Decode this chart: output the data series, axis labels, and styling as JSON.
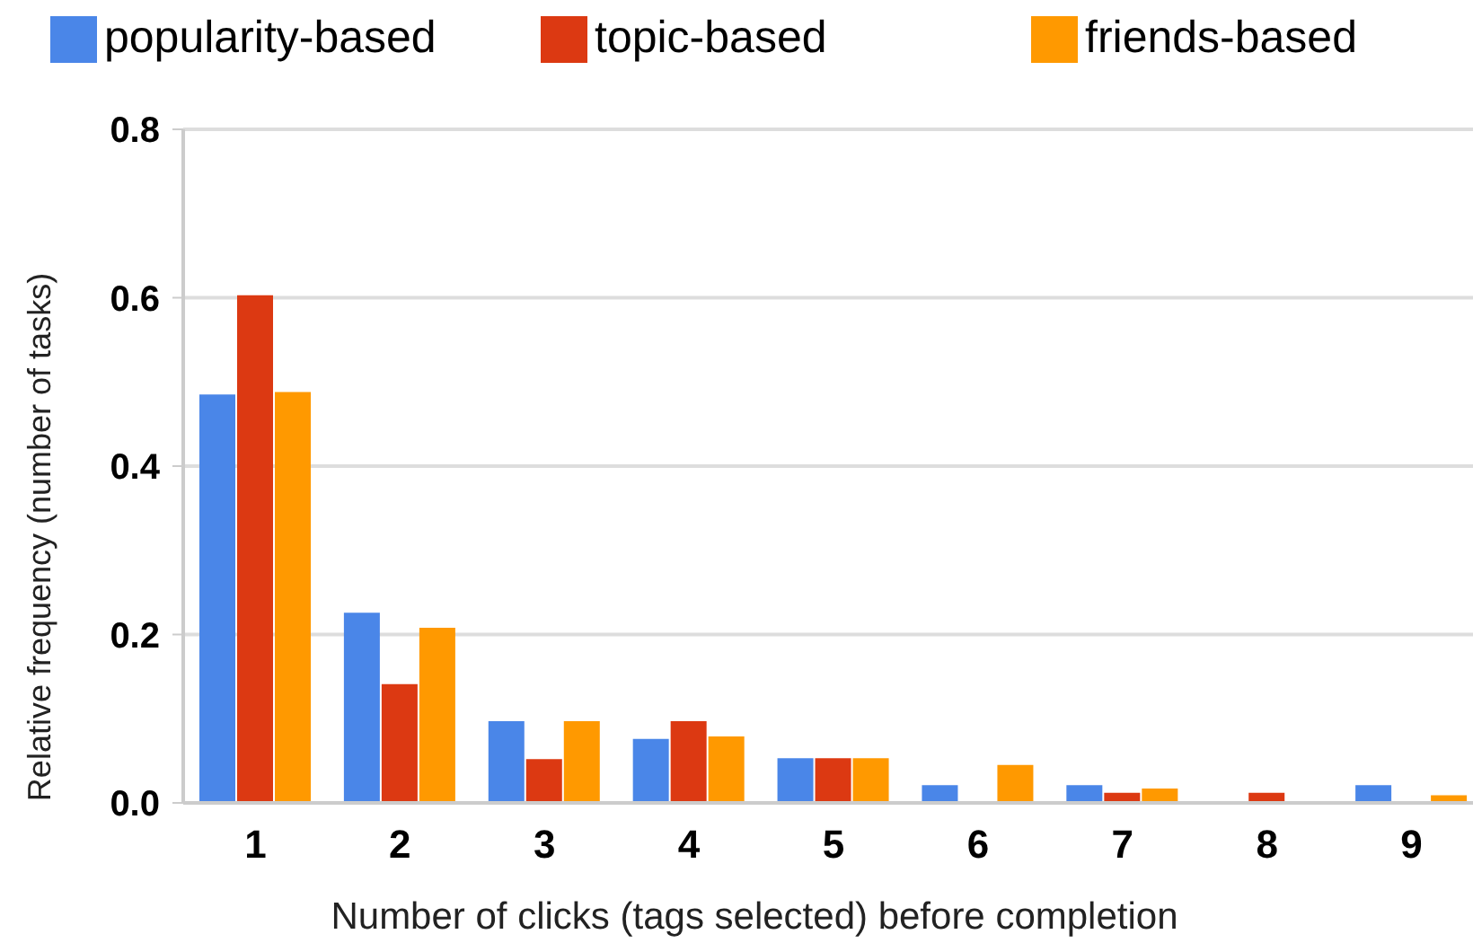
{
  "chart_data": {
    "type": "bar",
    "xlabel": "Number of clicks (tags selected) before completion",
    "ylabel": "Relative frequency (number of tasks)",
    "categories": [
      "1",
      "2",
      "3",
      "4",
      "5",
      "6",
      "7",
      "8",
      "9"
    ],
    "series": [
      {
        "name": "popularity-based",
        "color": "#4a86e8",
        "values": [
          0.485,
          0.226,
          0.097,
          0.076,
          0.053,
          0.021,
          0.021,
          0,
          0.021
        ]
      },
      {
        "name": "topic-based",
        "color": "#dc3912",
        "values": [
          0.603,
          0.141,
          0.052,
          0.097,
          0.053,
          0,
          0.012,
          0.012,
          0
        ]
      },
      {
        "name": "friends-based",
        "color": "#ff9900",
        "values": [
          0.488,
          0.208,
          0.097,
          0.079,
          0.053,
          0.045,
          0.017,
          0,
          0.009
        ]
      }
    ],
    "ylim": [
      0,
      0.8
    ],
    "yticks": [
      {
        "value": 0,
        "label": "0.0"
      },
      0.2,
      0.4,
      0.6,
      0.8
    ],
    "grid": "y",
    "legend": "top"
  }
}
